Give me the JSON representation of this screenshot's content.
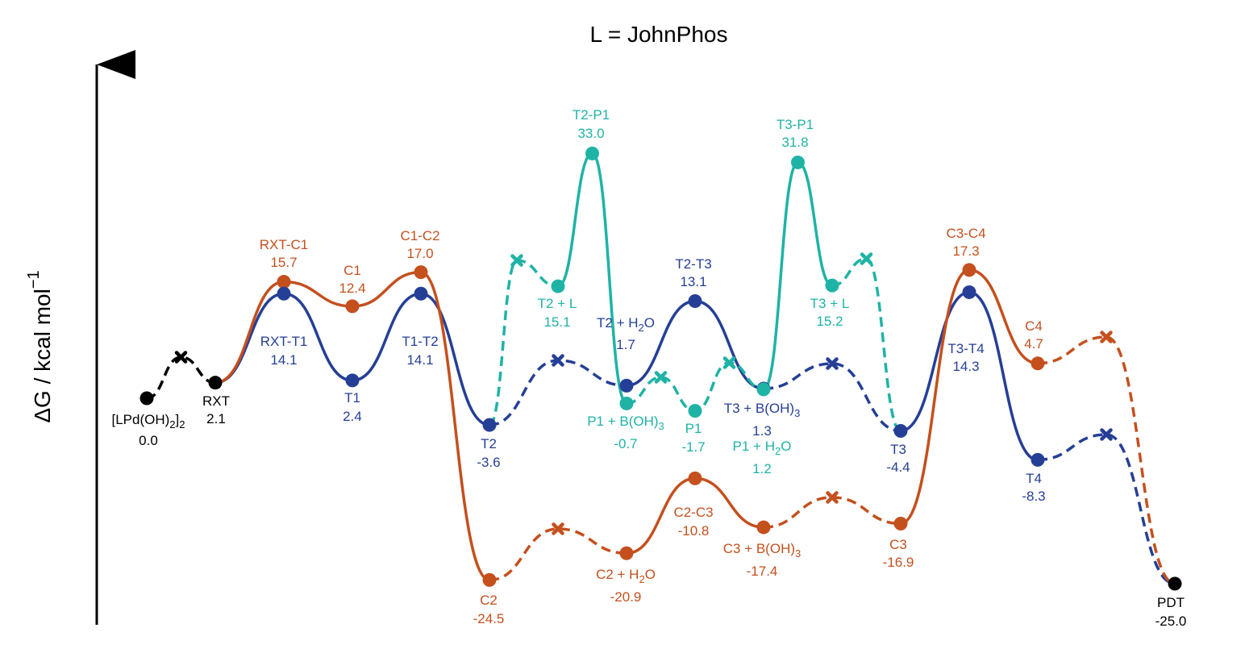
{
  "chart_data": {
    "type": "line",
    "title": "L = JohnPhos",
    "ylabel": "ΔG / kcal mol",
    "ylabel_superscript": "−1",
    "colors": {
      "black": "#000000",
      "orange": "#c4501e",
      "blue": "#253f96",
      "teal": "#1fb3a6"
    },
    "points": [
      {
        "id": "lpd",
        "label": "[LPd(OH)",
        "label_sub": "2",
        "label_after": "]",
        "label_sub2": "2",
        "value": "0.0",
        "color": "black",
        "x_stage": 0.0,
        "y": 0.0
      },
      {
        "id": "rxt",
        "label": "RXT",
        "value": "2.1",
        "color": "black",
        "x_stage": 1.0,
        "y": 2.1
      },
      {
        "id": "rxt-c1",
        "label": "RXT-C1",
        "value": "15.7",
        "color": "orange",
        "x_stage": 2.0,
        "y": 15.7
      },
      {
        "id": "c1",
        "label": "C1",
        "value": "12.4",
        "color": "orange",
        "x_stage": 3.0,
        "y": 12.4
      },
      {
        "id": "c1-c2",
        "label": "C1-C2",
        "value": "17.0",
        "color": "orange",
        "x_stage": 4.0,
        "y": 17.0
      },
      {
        "id": "c2",
        "label": "C2",
        "value": "-24.5",
        "color": "orange",
        "x_stage": 5.0,
        "y": -24.5
      },
      {
        "id": "c2h2o",
        "label": "C2 + H",
        "label_sub": "2",
        "label_after": "O",
        "value": "-20.9",
        "color": "orange",
        "x_stage": 7.0,
        "y": -20.9
      },
      {
        "id": "c2-c3",
        "label": "C2-C3",
        "value": "-10.8",
        "color": "orange",
        "x_stage": 8.0,
        "y": -10.8
      },
      {
        "id": "c3boh",
        "label": "C3 + B(OH)",
        "label_sub": "3",
        "label_after": "",
        "value": "-17.4",
        "color": "orange",
        "x_stage": 9.0,
        "y": -17.4
      },
      {
        "id": "c3",
        "label": "C3",
        "value": "-16.9",
        "color": "orange",
        "x_stage": 11.0,
        "y": -16.9
      },
      {
        "id": "c3-c4",
        "label": "C3-C4",
        "value": "17.3",
        "color": "orange",
        "x_stage": 12.0,
        "y": 17.3
      },
      {
        "id": "c4",
        "label": "C4",
        "value": "4.7",
        "color": "orange",
        "x_stage": 13.0,
        "y": 4.7
      },
      {
        "id": "rxt-t1",
        "label": "RXT-T1",
        "value": "14.1",
        "color": "blue",
        "x_stage": 2.0,
        "y": 14.1
      },
      {
        "id": "t1",
        "label": "T1",
        "value": "2.4",
        "color": "blue",
        "x_stage": 3.0,
        "y": 2.4
      },
      {
        "id": "t1-t2",
        "label": "T1-T2",
        "value": "14.1",
        "color": "blue",
        "x_stage": 4.0,
        "y": 14.1
      },
      {
        "id": "t2",
        "label": "T2",
        "value": "-3.6",
        "color": "blue",
        "x_stage": 5.0,
        "y": -3.6
      },
      {
        "id": "t2h2o",
        "label": "T2 + H",
        "label_sub": "2",
        "label_after": "O",
        "value": "1.7",
        "color": "blue",
        "x_stage": 7.0,
        "y": 1.7
      },
      {
        "id": "t2-t3",
        "label": "T2-T3",
        "value": "13.1",
        "color": "blue",
        "x_stage": 8.0,
        "y": 13.1
      },
      {
        "id": "t3boh",
        "label": "T3 + B(OH)",
        "label_sub": "3",
        "label_after": "",
        "value": "1.3",
        "color": "blue",
        "x_stage": 9.0,
        "y": 1.3
      },
      {
        "id": "t3",
        "label": "T3",
        "value": "-4.4",
        "color": "blue",
        "x_stage": 11.0,
        "y": -4.4
      },
      {
        "id": "t3-t4",
        "label": "T3-T4",
        "value": "14.3",
        "color": "blue",
        "x_stage": 12.0,
        "y": 14.3
      },
      {
        "id": "t4",
        "label": "T4",
        "value": "-8.3",
        "color": "blue",
        "x_stage": 13.0,
        "y": -8.3
      },
      {
        "id": "t2l",
        "label": "T2 + L",
        "value": "15.1",
        "color": "teal",
        "x_stage": 6.0,
        "y": 15.1
      },
      {
        "id": "t2-p1",
        "label": "T2-P1",
        "value": "33.0",
        "color": "teal",
        "x_stage": 6.5,
        "y": 33.0
      },
      {
        "id": "p1boh",
        "label": "P1 + B(OH)",
        "label_sub": "3",
        "label_after": "",
        "value": "-0.7",
        "color": "teal",
        "x_stage": 7.0,
        "y": -0.7
      },
      {
        "id": "p1",
        "label": "P1",
        "value": "-1.7",
        "color": "teal",
        "x_stage": 8.0,
        "y": -1.7
      },
      {
        "id": "p1h2o",
        "label": "P1 + H",
        "label_sub": "2",
        "label_after": "O",
        "value": "1.2",
        "color": "teal",
        "x_stage": 9.0,
        "y": 1.2
      },
      {
        "id": "t3-p1",
        "label": "T3-P1",
        "value": "31.8",
        "color": "teal",
        "x_stage": 9.5,
        "y": 31.8
      },
      {
        "id": "t3l",
        "label": "T3 + L",
        "value": "15.2",
        "color": "teal",
        "x_stage": 10.0,
        "y": 15.2
      },
      {
        "id": "pdt",
        "label": "PDT",
        "value": "-25.0",
        "color": "black",
        "x_stage": 15.0,
        "y": -25.0
      }
    ],
    "crossings": [
      {
        "id": "x-black",
        "color": "black",
        "x_stage": 0.5
      },
      {
        "id": "x-teal-1",
        "color": "teal",
        "x_stage": 5.4
      },
      {
        "id": "x-blue-1",
        "color": "blue",
        "x_stage": 6.0
      },
      {
        "id": "x-orange-1",
        "color": "orange",
        "x_stage": 6.0
      },
      {
        "id": "x-teal-2",
        "color": "teal",
        "x_stage": 7.5
      },
      {
        "id": "x-teal-3",
        "color": "teal",
        "x_stage": 8.5
      },
      {
        "id": "x-blue-2",
        "color": "blue",
        "x_stage": 10.0
      },
      {
        "id": "x-orange-2",
        "color": "orange",
        "x_stage": 10.0
      },
      {
        "id": "x-teal-4",
        "color": "teal",
        "x_stage": 10.5
      },
      {
        "id": "x-orange-3",
        "color": "orange",
        "x_stage": 14.0
      },
      {
        "id": "x-blue-3",
        "color": "blue",
        "x_stage": 14.0
      }
    ]
  }
}
